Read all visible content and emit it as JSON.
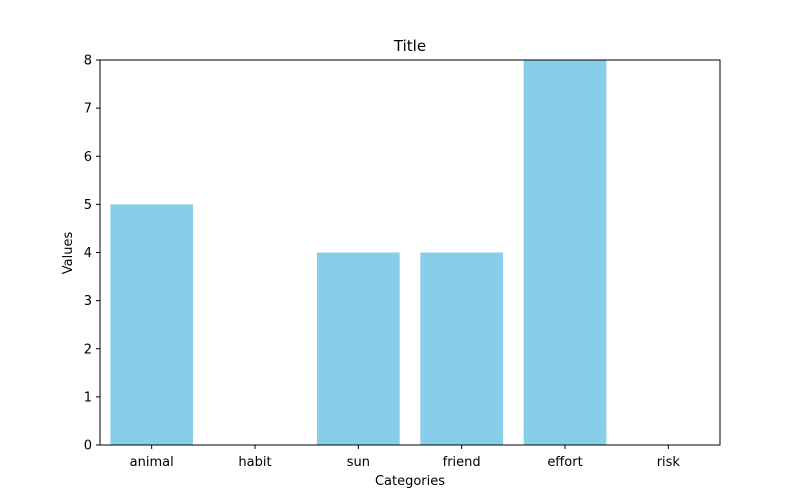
{
  "chart_data": {
    "type": "bar",
    "title": "Title",
    "xlabel": "Categories",
    "ylabel": "Values",
    "categories": [
      "animal",
      "habit",
      "sun",
      "friend",
      "effort",
      "risk"
    ],
    "values": [
      5,
      0,
      4,
      4,
      8,
      0
    ],
    "ylim": [
      0,
      8
    ],
    "yticks": [
      "0",
      "1",
      "2",
      "3",
      "4",
      "5",
      "6",
      "7",
      "8"
    ],
    "grid": false,
    "bar_color": "#87ceeb"
  }
}
